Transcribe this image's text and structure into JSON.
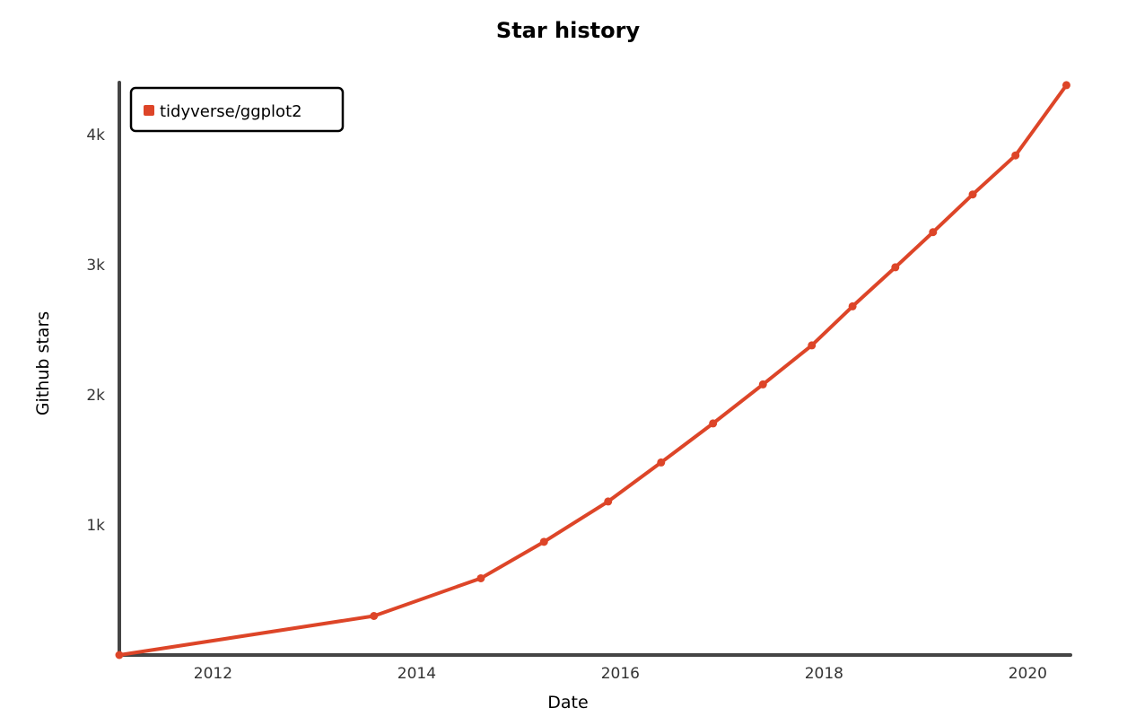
{
  "colors": {
    "series": "#dd4528",
    "axis": "#444444",
    "text": "#000000"
  },
  "chart_data": {
    "type": "line",
    "title": "Star history",
    "xlabel": "Date",
    "ylabel": "Github stars",
    "x_ticks": [
      "2012",
      "2014",
      "2016",
      "2018",
      "2020"
    ],
    "y_ticks": [
      "1k",
      "2k",
      "3k",
      "4k"
    ],
    "xlim": [
      2011.08,
      2020.42
    ],
    "ylim": [
      0,
      4400
    ],
    "legend_position": "top-left",
    "grid": false,
    "series": [
      {
        "name": "tidyverse/ggplot2",
        "color": "#dd4528",
        "x": [
          2011.08,
          2013.58,
          2014.63,
          2015.25,
          2015.88,
          2016.4,
          2016.91,
          2017.4,
          2017.88,
          2018.28,
          2018.7,
          2019.07,
          2019.46,
          2019.88,
          2020.38
        ],
        "y": [
          0,
          300,
          590,
          870,
          1180,
          1480,
          1780,
          2080,
          2380,
          2680,
          2980,
          3250,
          3540,
          3840,
          4380
        ]
      }
    ]
  }
}
